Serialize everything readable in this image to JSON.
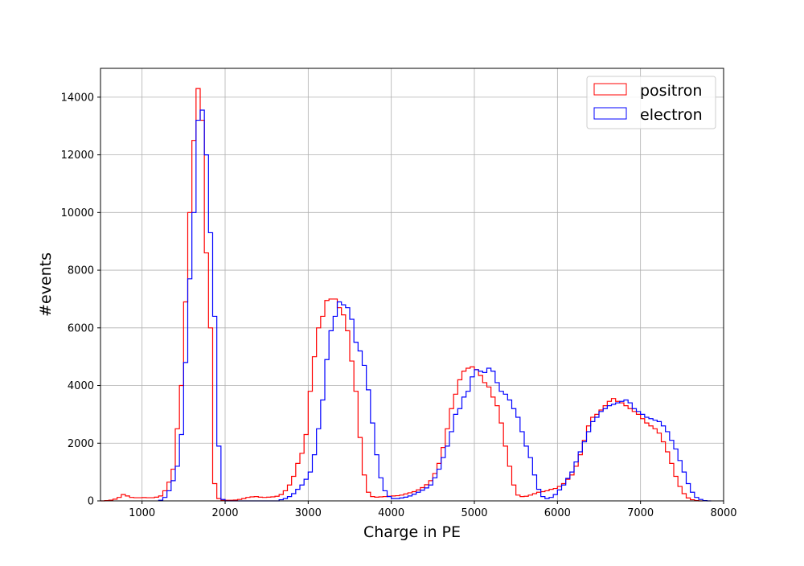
{
  "chart_data": {
    "type": "histogram",
    "title": "",
    "xlabel": "Charge in PE",
    "ylabel": "#events",
    "xlim": [
      500,
      8000
    ],
    "ylim": [
      0,
      15000
    ],
    "xticks": [
      1000,
      2000,
      3000,
      4000,
      5000,
      6000,
      7000,
      8000
    ],
    "yticks": [
      0,
      2000,
      4000,
      6000,
      8000,
      10000,
      12000,
      14000
    ],
    "grid": true,
    "legend_position": "top-right",
    "bin_width": 50,
    "series": [
      {
        "name": "positron",
        "color": "#ff0000",
        "bins": [
          [
            500,
            0
          ],
          [
            550,
            10
          ],
          [
            600,
            25
          ],
          [
            650,
            60
          ],
          [
            700,
            120
          ],
          [
            750,
            220
          ],
          [
            800,
            170
          ],
          [
            850,
            120
          ],
          [
            900,
            110
          ],
          [
            950,
            110
          ],
          [
            1000,
            115
          ],
          [
            1050,
            110
          ],
          [
            1100,
            110
          ],
          [
            1150,
            130
          ],
          [
            1200,
            170
          ],
          [
            1250,
            350
          ],
          [
            1300,
            650
          ],
          [
            1350,
            1100
          ],
          [
            1400,
            2500
          ],
          [
            1450,
            4000
          ],
          [
            1500,
            6900
          ],
          [
            1550,
            10000
          ],
          [
            1600,
            12500
          ],
          [
            1650,
            14300
          ],
          [
            1700,
            13200
          ],
          [
            1750,
            8600
          ],
          [
            1800,
            6000
          ],
          [
            1850,
            600
          ],
          [
            1900,
            80
          ],
          [
            1950,
            20
          ],
          [
            2000,
            20
          ],
          [
            2050,
            20
          ],
          [
            2100,
            30
          ],
          [
            2150,
            50
          ],
          [
            2200,
            80
          ],
          [
            2250,
            120
          ],
          [
            2300,
            140
          ],
          [
            2350,
            150
          ],
          [
            2400,
            130
          ],
          [
            2450,
            120
          ],
          [
            2500,
            130
          ],
          [
            2550,
            140
          ],
          [
            2600,
            160
          ],
          [
            2650,
            220
          ],
          [
            2700,
            350
          ],
          [
            2750,
            550
          ],
          [
            2800,
            850
          ],
          [
            2850,
            1300
          ],
          [
            2900,
            1650
          ],
          [
            2950,
            2300
          ],
          [
            3000,
            3800
          ],
          [
            3050,
            5000
          ],
          [
            3100,
            6000
          ],
          [
            3150,
            6400
          ],
          [
            3200,
            6950
          ],
          [
            3250,
            7000
          ],
          [
            3300,
            7000
          ],
          [
            3350,
            6700
          ],
          [
            3400,
            6450
          ],
          [
            3450,
            5900
          ],
          [
            3500,
            4850
          ],
          [
            3550,
            3800
          ],
          [
            3600,
            2200
          ],
          [
            3650,
            900
          ],
          [
            3700,
            300
          ],
          [
            3750,
            150
          ],
          [
            3800,
            130
          ],
          [
            3850,
            140
          ],
          [
            3900,
            150
          ],
          [
            3950,
            160
          ],
          [
            4000,
            170
          ],
          [
            4050,
            180
          ],
          [
            4100,
            200
          ],
          [
            4150,
            240
          ],
          [
            4200,
            280
          ],
          [
            4250,
            320
          ],
          [
            4300,
            380
          ],
          [
            4350,
            460
          ],
          [
            4400,
            560
          ],
          [
            4450,
            700
          ],
          [
            4500,
            950
          ],
          [
            4550,
            1300
          ],
          [
            4600,
            1850
          ],
          [
            4650,
            2500
          ],
          [
            4700,
            3200
          ],
          [
            4750,
            3700
          ],
          [
            4800,
            4200
          ],
          [
            4850,
            4500
          ],
          [
            4900,
            4600
          ],
          [
            4950,
            4650
          ],
          [
            5000,
            4550
          ],
          [
            5050,
            4350
          ],
          [
            5100,
            4100
          ],
          [
            5150,
            3950
          ],
          [
            5200,
            3600
          ],
          [
            5250,
            3300
          ],
          [
            5300,
            2700
          ],
          [
            5350,
            1900
          ],
          [
            5400,
            1200
          ],
          [
            5450,
            550
          ],
          [
            5500,
            200
          ],
          [
            5550,
            150
          ],
          [
            5600,
            160
          ],
          [
            5650,
            200
          ],
          [
            5700,
            250
          ],
          [
            5750,
            300
          ],
          [
            5800,
            320
          ],
          [
            5850,
            350
          ],
          [
            5900,
            400
          ],
          [
            5950,
            430
          ],
          [
            6000,
            500
          ],
          [
            6050,
            600
          ],
          [
            6100,
            750
          ],
          [
            6150,
            900
          ],
          [
            6200,
            1200
          ],
          [
            6250,
            1600
          ],
          [
            6300,
            2100
          ],
          [
            6350,
            2600
          ],
          [
            6400,
            2900
          ],
          [
            6450,
            3000
          ],
          [
            6500,
            3150
          ],
          [
            6550,
            3300
          ],
          [
            6600,
            3450
          ],
          [
            6650,
            3550
          ],
          [
            6700,
            3450
          ],
          [
            6750,
            3400
          ],
          [
            6800,
            3300
          ],
          [
            6850,
            3200
          ],
          [
            6900,
            3100
          ],
          [
            6950,
            3000
          ],
          [
            7000,
            2850
          ],
          [
            7050,
            2700
          ],
          [
            7100,
            2600
          ],
          [
            7150,
            2500
          ],
          [
            7200,
            2350
          ],
          [
            7250,
            2050
          ],
          [
            7300,
            1700
          ],
          [
            7350,
            1300
          ],
          [
            7400,
            850
          ],
          [
            7450,
            500
          ],
          [
            7500,
            250
          ],
          [
            7550,
            100
          ],
          [
            7600,
            40
          ],
          [
            7650,
            10
          ],
          [
            7700,
            0
          ]
        ]
      },
      {
        "name": "electron",
        "color": "#0000ff",
        "bins": [
          [
            1200,
            20
          ],
          [
            1250,
            120
          ],
          [
            1300,
            350
          ],
          [
            1350,
            700
          ],
          [
            1400,
            1200
          ],
          [
            1450,
            2300
          ],
          [
            1500,
            4800
          ],
          [
            1550,
            7700
          ],
          [
            1600,
            10000
          ],
          [
            1650,
            13200
          ],
          [
            1700,
            13550
          ],
          [
            1750,
            12000
          ],
          [
            1800,
            9300
          ],
          [
            1850,
            6400
          ],
          [
            1900,
            1900
          ],
          [
            1950,
            50
          ],
          [
            2000,
            0
          ],
          [
            2650,
            40
          ],
          [
            2700,
            80
          ],
          [
            2750,
            150
          ],
          [
            2800,
            250
          ],
          [
            2850,
            400
          ],
          [
            2900,
            550
          ],
          [
            2950,
            750
          ],
          [
            3000,
            1000
          ],
          [
            3050,
            1600
          ],
          [
            3100,
            2500
          ],
          [
            3150,
            3500
          ],
          [
            3200,
            4900
          ],
          [
            3250,
            5900
          ],
          [
            3300,
            6400
          ],
          [
            3350,
            6900
          ],
          [
            3400,
            6800
          ],
          [
            3450,
            6700
          ],
          [
            3500,
            6300
          ],
          [
            3550,
            5500
          ],
          [
            3600,
            5200
          ],
          [
            3650,
            4700
          ],
          [
            3700,
            3850
          ],
          [
            3750,
            2700
          ],
          [
            3800,
            1600
          ],
          [
            3850,
            800
          ],
          [
            3900,
            350
          ],
          [
            3950,
            150
          ],
          [
            4000,
            80
          ],
          [
            4050,
            80
          ],
          [
            4100,
            100
          ],
          [
            4150,
            130
          ],
          [
            4200,
            170
          ],
          [
            4250,
            230
          ],
          [
            4300,
            300
          ],
          [
            4350,
            370
          ],
          [
            4400,
            450
          ],
          [
            4450,
            550
          ],
          [
            4500,
            800
          ],
          [
            4550,
            1100
          ],
          [
            4600,
            1500
          ],
          [
            4650,
            1900
          ],
          [
            4700,
            2400
          ],
          [
            4750,
            3000
          ],
          [
            4800,
            3200
          ],
          [
            4850,
            3600
          ],
          [
            4900,
            3800
          ],
          [
            4950,
            4300
          ],
          [
            5000,
            4550
          ],
          [
            5050,
            4500
          ],
          [
            5100,
            4450
          ],
          [
            5150,
            4600
          ],
          [
            5200,
            4500
          ],
          [
            5250,
            4100
          ],
          [
            5300,
            3800
          ],
          [
            5350,
            3700
          ],
          [
            5400,
            3500
          ],
          [
            5450,
            3200
          ],
          [
            5500,
            2900
          ],
          [
            5550,
            2400
          ],
          [
            5600,
            1900
          ],
          [
            5650,
            1500
          ],
          [
            5700,
            900
          ],
          [
            5750,
            400
          ],
          [
            5800,
            150
          ],
          [
            5850,
            80
          ],
          [
            5900,
            120
          ],
          [
            5950,
            220
          ],
          [
            6000,
            380
          ],
          [
            6050,
            550
          ],
          [
            6100,
            780
          ],
          [
            6150,
            1000
          ],
          [
            6200,
            1350
          ],
          [
            6250,
            1700
          ],
          [
            6300,
            2050
          ],
          [
            6350,
            2400
          ],
          [
            6400,
            2750
          ],
          [
            6450,
            2900
          ],
          [
            6500,
            3100
          ],
          [
            6550,
            3200
          ],
          [
            6600,
            3300
          ],
          [
            6650,
            3350
          ],
          [
            6700,
            3400
          ],
          [
            6750,
            3450
          ],
          [
            6800,
            3500
          ],
          [
            6850,
            3400
          ],
          [
            6900,
            3200
          ],
          [
            6950,
            3100
          ],
          [
            7000,
            3000
          ],
          [
            7050,
            2900
          ],
          [
            7100,
            2850
          ],
          [
            7150,
            2800
          ],
          [
            7200,
            2750
          ],
          [
            7250,
            2600
          ],
          [
            7300,
            2400
          ],
          [
            7350,
            2100
          ],
          [
            7400,
            1800
          ],
          [
            7450,
            1400
          ],
          [
            7500,
            1000
          ],
          [
            7550,
            600
          ],
          [
            7600,
            300
          ],
          [
            7650,
            120
          ],
          [
            7700,
            50
          ],
          [
            7750,
            10
          ],
          [
            7800,
            0
          ]
        ]
      }
    ]
  }
}
